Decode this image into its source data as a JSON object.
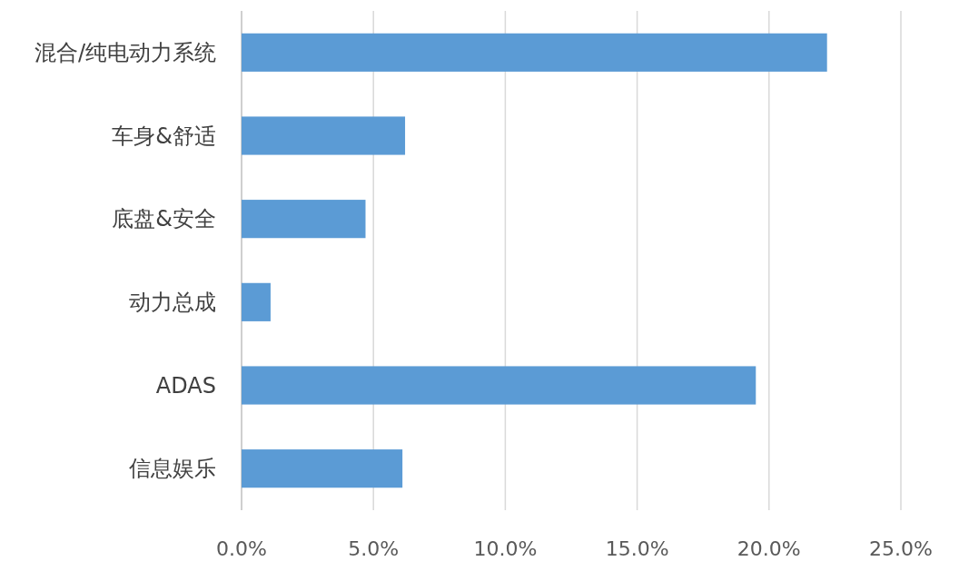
{
  "chart_data": {
    "type": "bar",
    "orientation": "horizontal",
    "categories": [
      "混合/纯电动力系统",
      "车身&舒适",
      "底盘&安全",
      "动力总成",
      "ADAS",
      "信息娱乐"
    ],
    "values": [
      22.2,
      6.2,
      4.7,
      1.1,
      19.5,
      6.1
    ],
    "color": "#5b9bd5",
    "xlim": [
      0,
      25
    ],
    "xticks": [
      {
        "value": 0,
        "label": "0.0%"
      },
      {
        "value": 5,
        "label": "5.0%"
      },
      {
        "value": 10,
        "label": "10.0%"
      },
      {
        "value": 15,
        "label": "15.0%"
      },
      {
        "value": 20,
        "label": "20.0%"
      },
      {
        "value": 25,
        "label": "25.0%"
      }
    ],
    "grid": "x"
  }
}
